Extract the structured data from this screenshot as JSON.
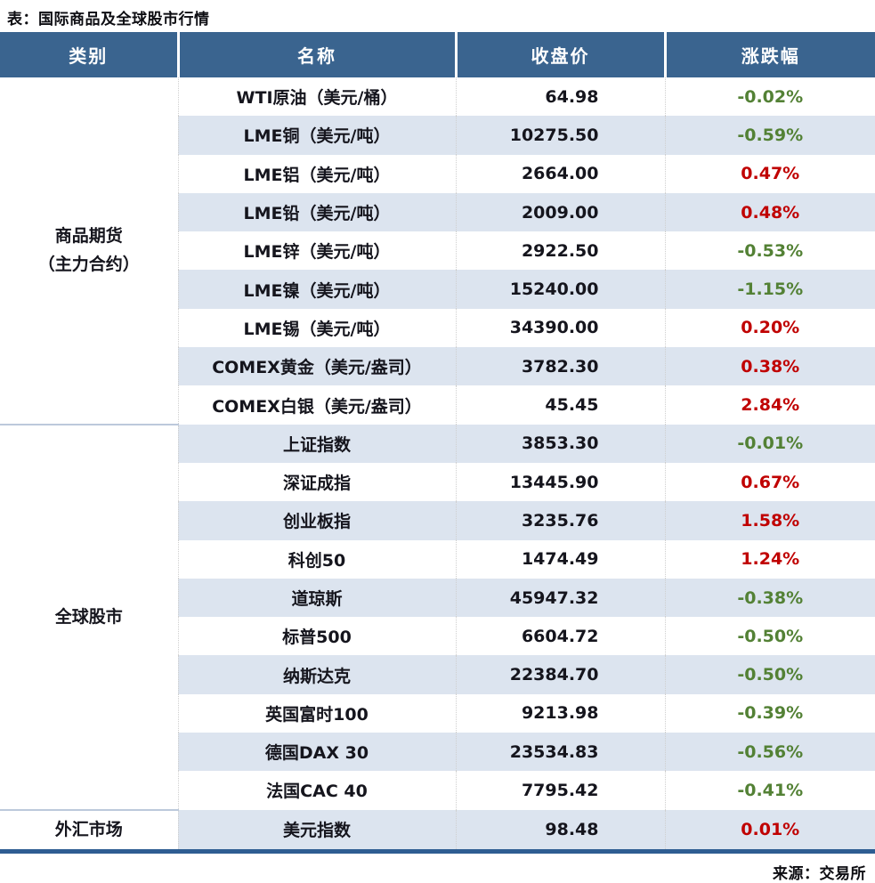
{
  "page": {
    "title": "表：国际商品及全球股市行情",
    "source": "来源：交易所"
  },
  "colors": {
    "header_bg": "#3a648f",
    "stripe_bg": "#dce4ef",
    "up_red": "#c00000",
    "down_green": "#538135",
    "bottom_border": "#2e5d92",
    "section_divider": "#bcc9db"
  },
  "chart_data": {
    "type": "table",
    "title": "表：国际商品及全球股市行情",
    "source": "来源：交易所",
    "headers": [
      "类别",
      "名称",
      "收盘价",
      "涨跌幅"
    ],
    "sections": [
      {
        "category_lines": [
          "商品期货",
          "（主力合约）"
        ],
        "rows": [
          {
            "name": "WTI原油（美元/桶）",
            "close": "64.98",
            "change": "-0.02%",
            "direction": "down"
          },
          {
            "name": "LME铜（美元/吨）",
            "close": "10275.50",
            "change": "-0.59%",
            "direction": "down"
          },
          {
            "name": "LME铝（美元/吨）",
            "close": "2664.00",
            "change": "0.47%",
            "direction": "up"
          },
          {
            "name": "LME铅（美元/吨）",
            "close": "2009.00",
            "change": "0.48%",
            "direction": "up"
          },
          {
            "name": "LME锌（美元/吨）",
            "close": "2922.50",
            "change": "-0.53%",
            "direction": "down"
          },
          {
            "name": "LME镍（美元/吨）",
            "close": "15240.00",
            "change": "-1.15%",
            "direction": "down"
          },
          {
            "name": "LME锡（美元/吨）",
            "close": "34390.00",
            "change": "0.20%",
            "direction": "up"
          },
          {
            "name": "COMEX黄金（美元/盎司）",
            "close": "3782.30",
            "change": "0.38%",
            "direction": "up"
          },
          {
            "name": "COMEX白银（美元/盎司）",
            "close": "45.45",
            "change": "2.84%",
            "direction": "up"
          }
        ]
      },
      {
        "category_lines": [
          "全球股市"
        ],
        "rows": [
          {
            "name": "上证指数",
            "close": "3853.30",
            "change": "-0.01%",
            "direction": "down"
          },
          {
            "name": "深证成指",
            "close": "13445.90",
            "change": "0.67%",
            "direction": "up"
          },
          {
            "name": "创业板指",
            "close": "3235.76",
            "change": "1.58%",
            "direction": "up"
          },
          {
            "name": "科创50",
            "close": "1474.49",
            "change": "1.24%",
            "direction": "up"
          },
          {
            "name": "道琼斯",
            "close": "45947.32",
            "change": "-0.38%",
            "direction": "down"
          },
          {
            "name": "标普500",
            "close": "6604.72",
            "change": "-0.50%",
            "direction": "down"
          },
          {
            "name": "纳斯达克",
            "close": "22384.70",
            "change": "-0.50%",
            "direction": "down"
          },
          {
            "name": "英国富时100",
            "close": "9213.98",
            "change": "-0.39%",
            "direction": "down"
          },
          {
            "name": "德国DAX 30",
            "close": "23534.83",
            "change": "-0.56%",
            "direction": "down"
          },
          {
            "name": "法国CAC 40",
            "close": "7795.42",
            "change": "-0.41%",
            "direction": "down"
          }
        ]
      },
      {
        "category_lines": [
          "外汇市场"
        ],
        "rows": [
          {
            "name": "美元指数",
            "close": "98.48",
            "change": "0.01%",
            "direction": "up"
          }
        ]
      }
    ]
  }
}
